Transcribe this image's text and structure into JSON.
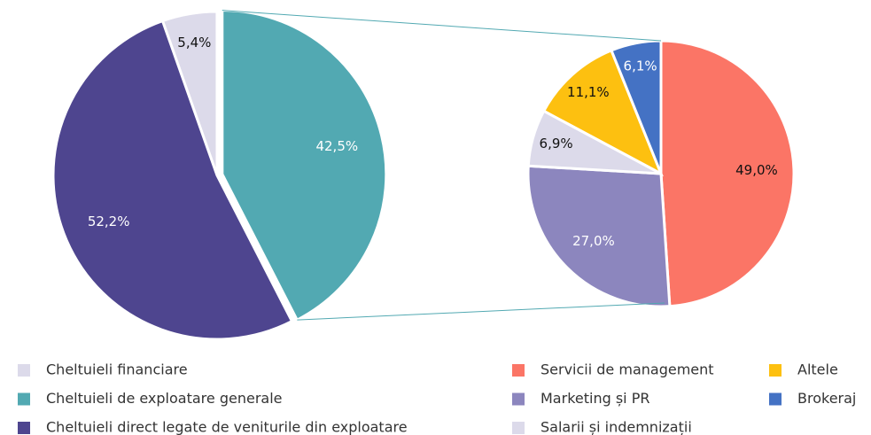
{
  "chart_data": [
    {
      "type": "pie",
      "categories": [
        "Cheltuieli financiare",
        "Cheltuieli de exploatare generale",
        "Cheltuieli direct legate de veniturile din exploatare"
      ],
      "values": [
        5.4,
        42.5,
        52.2
      ],
      "value_labels": [
        "5,4%",
        "42,5%",
        "52,2%"
      ],
      "colors": [
        "#dcdaea",
        "#52a9b2",
        "#4e458f"
      ]
    },
    {
      "type": "pie",
      "categories": [
        "Servicii de management",
        "Marketing și PR",
        "Salarii și indemnizații",
        "Altele",
        "Brokeraj"
      ],
      "values": [
        49.0,
        27.0,
        6.9,
        11.1,
        6.1
      ],
      "value_labels": [
        "49,0%",
        "27,0%",
        "6,9%",
        "11,1%",
        "6,1%"
      ],
      "colors": [
        "#fb7566",
        "#8c86be",
        "#dcdaea",
        "#fdc010",
        "#4472c4"
      ]
    }
  ]
}
